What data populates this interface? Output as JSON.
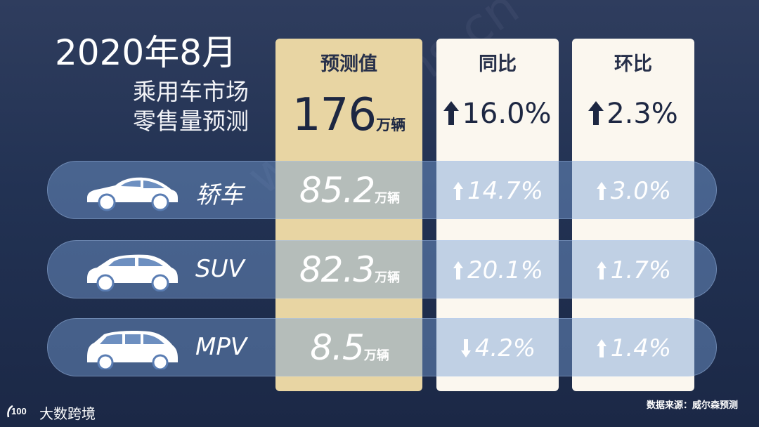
{
  "title": {
    "line1": "2020年8月",
    "line2": "乘用车市场",
    "line3": "零售量预测"
  },
  "columns": {
    "forecast": {
      "header": "预测值",
      "value": "176",
      "unit": "万辆"
    },
    "yoy": {
      "header": "同比",
      "value": "16.0%",
      "direction": "up"
    },
    "mom": {
      "header": "环比",
      "value": "2.3%",
      "direction": "up"
    }
  },
  "rows": [
    {
      "label": "轿车",
      "icon": "sedan-icon",
      "value": "85.2",
      "unit": "万辆",
      "yoy": "14.7%",
      "yoy_direction": "up",
      "mom": "3.0%",
      "mom_direction": "up"
    },
    {
      "label": "SUV",
      "icon": "suv-icon",
      "value": "82.3",
      "unit": "万辆",
      "yoy": "20.1%",
      "yoy_direction": "up",
      "mom": "1.7%",
      "mom_direction": "up"
    },
    {
      "label": "MPV",
      "icon": "mpv-icon",
      "value": "8.5",
      "unit": "万辆",
      "yoy": "4.2%",
      "yoy_direction": "down",
      "mom": "1.4%",
      "mom_direction": "up"
    }
  ],
  "footer": {
    "source": "数据来源：威尔森预测",
    "brand": "大数跨境"
  },
  "watermark": "www.wins.cn",
  "colors": {
    "background": "#223253",
    "forecast_column": "#e8d5a3",
    "change_columns": "#fbf7ef",
    "dark_text": "#1d2742",
    "row_band": "#78a0d7"
  }
}
